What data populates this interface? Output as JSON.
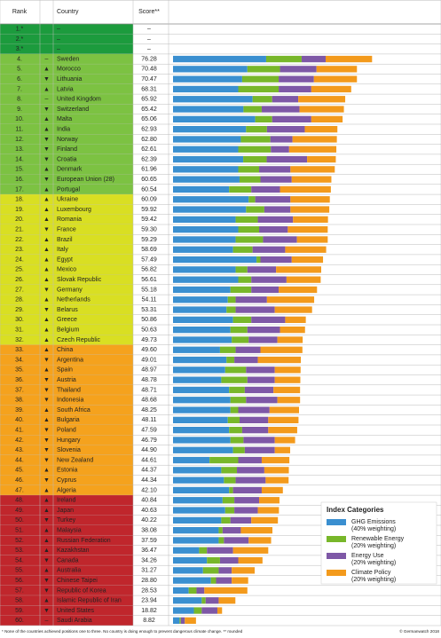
{
  "header": {
    "rank": "Rank",
    "country": "Country",
    "score": "Score**"
  },
  "legend": {
    "title": "Index Categories",
    "items": [
      {
        "name": "GHG Emissions",
        "weight": "(40% weighting)",
        "color": "#3a8fd0"
      },
      {
        "name": "Renewable Energy",
        "weight": "(20% weighting)",
        "color": "#78b72a"
      },
      {
        "name": "Energy Use",
        "weight": "(20% weighting)",
        "color": "#7e58a6"
      },
      {
        "name": "Climate Policy",
        "weight": "(20% weighting)",
        "color": "#f39a1c"
      }
    ]
  },
  "rows": [
    {
      "rank": "1.*",
      "country": "–",
      "score": "–",
      "color": "#1c9b3d"
    },
    {
      "rank": "2.*",
      "country": "–",
      "score": "–",
      "color": "#1c9b3d"
    },
    {
      "rank": "3.*",
      "country": "–",
      "score": "–",
      "color": "#1c9b3d"
    },
    {
      "rank": "4.",
      "trend": "–",
      "country": "Sweden",
      "score": "76.28",
      "color": "#7cc242",
      "bars": [
        35.7,
        13.6,
        9.2,
        17.8
      ]
    },
    {
      "rank": "5.",
      "trend": "▲",
      "country": "Morocco",
      "score": "70.48",
      "color": "#7cc242",
      "bars": [
        28.5,
        12.5,
        14.0,
        15.5
      ]
    },
    {
      "rank": "6.",
      "trend": "▼",
      "country": "Lithuania",
      "score": "70.47",
      "color": "#7cc242",
      "bars": [
        26.5,
        14.0,
        13.5,
        16.5
      ]
    },
    {
      "rank": "7.",
      "trend": "▲",
      "country": "Latvia",
      "score": "68.31",
      "color": "#7cc242",
      "bars": [
        25.0,
        15.5,
        12.5,
        15.3
      ]
    },
    {
      "rank": "8.",
      "trend": "–",
      "country": "United Kingdom",
      "score": "65.92",
      "color": "#7cc242",
      "bars": [
        30.5,
        7.5,
        10.0,
        18.0
      ]
    },
    {
      "rank": "9.",
      "trend": "▼",
      "country": "Switzerland",
      "score": "65.42",
      "color": "#7cc242",
      "bars": [
        27.0,
        7.0,
        14.5,
        17.0
      ]
    },
    {
      "rank": "10.",
      "trend": "▲",
      "country": "Malta",
      "score": "65.06",
      "color": "#7cc242",
      "bars": [
        31.5,
        6.5,
        15.0,
        12.0
      ]
    },
    {
      "rank": "11.",
      "trend": "▲",
      "country": "India",
      "score": "62.93",
      "color": "#7cc242",
      "bars": [
        28.0,
        8.0,
        14.5,
        12.5
      ]
    },
    {
      "rank": "12.",
      "trend": "▼",
      "country": "Norway",
      "score": "62.80",
      "color": "#7cc242",
      "bars": [
        26.0,
        11.3,
        8.5,
        17.0
      ]
    },
    {
      "rank": "13.",
      "trend": "▼",
      "country": "Finland",
      "score": "62.61",
      "color": "#7cc242",
      "bars": [
        25.0,
        12.5,
        7.0,
        18.1
      ]
    },
    {
      "rank": "14.",
      "trend": "▼",
      "country": "Croatia",
      "score": "62.39",
      "color": "#7cc242",
      "bars": [
        26.9,
        9.0,
        15.5,
        11.0
      ]
    },
    {
      "rank": "15.",
      "trend": "▲",
      "country": "Denmark",
      "score": "61.96",
      "color": "#7cc242",
      "bars": [
        25.0,
        8.0,
        12.0,
        17.0
      ]
    },
    {
      "rank": "16.",
      "trend": "▼",
      "country": "European Union (28)",
      "score": "60.65",
      "color": "#7cc242",
      "bars": [
        25.5,
        8.0,
        12.0,
        15.2
      ]
    },
    {
      "rank": "17.",
      "trend": "▲",
      "country": "Portugal",
      "score": "60.54",
      "color": "#7cc242",
      "bars": [
        21.5,
        8.5,
        11.0,
        19.5
      ]
    },
    {
      "rank": "18.",
      "trend": "▲",
      "country": "Ukraine",
      "score": "60.09",
      "color": "#d9df22",
      "bars": [
        29.0,
        2.5,
        13.5,
        15.1
      ]
    },
    {
      "rank": "19.",
      "trend": "▲",
      "country": "Luxembourg",
      "score": "59.92",
      "color": "#d9df22",
      "bars": [
        28.0,
        7.0,
        10.0,
        14.9
      ]
    },
    {
      "rank": "20.",
      "trend": "▲",
      "country": "Romania",
      "score": "59.42",
      "color": "#d9df22",
      "bars": [
        24.0,
        8.5,
        13.5,
        13.4
      ]
    },
    {
      "rank": "21.",
      "trend": "▼",
      "country": "France",
      "score": "59.30",
      "color": "#d9df22",
      "bars": [
        25.0,
        8.0,
        11.0,
        15.3
      ]
    },
    {
      "rank": "22.",
      "trend": "▲",
      "country": "Brazil",
      "score": "59.29",
      "color": "#d9df22",
      "bars": [
        24.0,
        10.5,
        13.0,
        11.8
      ]
    },
    {
      "rank": "23.",
      "trend": "▲",
      "country": "Italy",
      "score": "58.69",
      "color": "#d9df22",
      "bars": [
        23.0,
        7.5,
        12.5,
        15.7
      ]
    },
    {
      "rank": "24.",
      "trend": "▲",
      "country": "Egypt",
      "score": "57.49",
      "color": "#d9df22",
      "bars": [
        32.0,
        1.5,
        12.0,
        12.0
      ]
    },
    {
      "rank": "25.",
      "trend": "▲",
      "country": "Mexico",
      "score": "56.82",
      "color": "#d9df22",
      "bars": [
        24.0,
        4.5,
        11.0,
        17.3
      ]
    },
    {
      "rank": "26.",
      "trend": "▲",
      "country": "Slovak Republic",
      "score": "56.61",
      "color": "#d9df22",
      "bars": [
        25.0,
        5.0,
        13.5,
        13.1
      ]
    },
    {
      "rank": "27.",
      "trend": "▼",
      "country": "Germany",
      "score": "55.18",
      "color": "#d9df22",
      "bars": [
        22.0,
        8.0,
        10.5,
        14.7
      ]
    },
    {
      "rank": "28.",
      "trend": "▲",
      "country": "Netherlands",
      "score": "54.11",
      "color": "#d9df22",
      "bars": [
        21.0,
        3.0,
        12.0,
        18.1
      ]
    },
    {
      "rank": "29.",
      "trend": "▼",
      "country": "Belarus",
      "score": "53.31",
      "color": "#d9df22",
      "bars": [
        20.5,
        3.5,
        15.0,
        14.3
      ]
    },
    {
      "rank": "30.",
      "trend": "▲",
      "country": "Greece",
      "score": "50.86",
      "color": "#d9df22",
      "bars": [
        23.0,
        7.0,
        13.0,
        7.9
      ]
    },
    {
      "rank": "31.",
      "trend": "▲",
      "country": "Belgium",
      "score": "50.63",
      "color": "#d9df22",
      "bars": [
        22.0,
        6.5,
        12.5,
        9.6
      ]
    },
    {
      "rank": "32.",
      "trend": "▲",
      "country": "Czech Republic",
      "score": "49.73",
      "color": "#d9df22",
      "bars": [
        22.5,
        6.5,
        11.0,
        9.7
      ]
    },
    {
      "rank": "33.",
      "trend": "▲",
      "country": "China",
      "score": "49.60",
      "color": "#f5a21d",
      "bars": [
        18.0,
        6.0,
        9.5,
        16.1
      ]
    },
    {
      "rank": "34.",
      "trend": "▼",
      "country": "Argentina",
      "score": "49.01",
      "color": "#f5a21d",
      "bars": [
        20.5,
        3.0,
        9.0,
        16.5
      ]
    },
    {
      "rank": "35.",
      "trend": "▲",
      "country": "Spain",
      "score": "48.97",
      "color": "#f5a21d",
      "bars": [
        20.0,
        8.0,
        11.0,
        9.9
      ]
    },
    {
      "rank": "36.",
      "trend": "▼",
      "country": "Austria",
      "score": "48.78",
      "color": "#f5a21d",
      "bars": [
        18.5,
        10.0,
        10.5,
        9.8
      ]
    },
    {
      "rank": "37.",
      "trend": "▼",
      "country": "Thailand",
      "score": "48.71",
      "color": "#f5a21d",
      "bars": [
        21.5,
        6.0,
        11.0,
        10.2
      ]
    },
    {
      "rank": "38.",
      "trend": "▼",
      "country": "Indonesia",
      "score": "48.68",
      "color": "#f5a21d",
      "bars": [
        22.0,
        6.0,
        12.0,
        8.7
      ]
    },
    {
      "rank": "39.",
      "trend": "▲",
      "country": "South Africa",
      "score": "48.25",
      "color": "#f5a21d",
      "bars": [
        22.0,
        3.0,
        12.0,
        11.3
      ]
    },
    {
      "rank": "40.",
      "trend": "▲",
      "country": "Bulgaria",
      "score": "48.11",
      "color": "#f5a21d",
      "bars": [
        21.0,
        4.5,
        11.0,
        11.6
      ]
    },
    {
      "rank": "41.",
      "trend": "▼",
      "country": "Poland",
      "score": "47.59",
      "color": "#f5a21d",
      "bars": [
        21.5,
        5.0,
        10.0,
        11.1
      ]
    },
    {
      "rank": "42.",
      "trend": "▼",
      "country": "Hungary",
      "score": "46.79",
      "color": "#f5a21d",
      "bars": [
        22.0,
        5.0,
        12.0,
        7.8
      ]
    },
    {
      "rank": "43.",
      "trend": "▼",
      "country": "Slovenia",
      "score": "44.90",
      "color": "#f5a21d",
      "bars": [
        23.0,
        4.5,
        11.5,
        5.9
      ]
    },
    {
      "rank": "44.",
      "trend": "▼",
      "country": "New Zealand",
      "score": "44.61",
      "color": "#f5a21d",
      "bars": [
        14.0,
        11.0,
        9.0,
        10.6
      ]
    },
    {
      "rank": "45.",
      "trend": "▲",
      "country": "Estonia",
      "score": "44.37",
      "color": "#f5a21d",
      "bars": [
        18.5,
        6.0,
        10.5,
        9.4
      ]
    },
    {
      "rank": "46.",
      "trend": "▼",
      "country": "Cyprus",
      "score": "44.34",
      "color": "#f5a21d",
      "bars": [
        19.5,
        4.5,
        11.5,
        8.8
      ]
    },
    {
      "rank": "47.",
      "trend": "▲",
      "country": "Algeria",
      "score": "42.10",
      "color": "#f5a21d",
      "bars": [
        21.5,
        1.5,
        11.0,
        8.1
      ]
    },
    {
      "rank": "48.",
      "trend": "▲",
      "country": "Ireland",
      "score": "40.84",
      "color": "#c0262c",
      "bars": [
        19.0,
        4.5,
        9.5,
        7.8
      ]
    },
    {
      "rank": "49.",
      "trend": "▲",
      "country": "Japan",
      "score": "40.63",
      "color": "#c0262c",
      "bars": [
        20.0,
        3.5,
        9.0,
        8.1
      ]
    },
    {
      "rank": "50.",
      "trend": "▼",
      "country": "Turkey",
      "score": "40.22",
      "color": "#c0262c",
      "bars": [
        18.5,
        3.5,
        8.0,
        10.2
      ]
    },
    {
      "rank": "51.",
      "trend": "▲",
      "country": "Malaysia",
      "score": "38.08",
      "color": "#c0262c",
      "bars": [
        17.5,
        1.5,
        7.0,
        12.1
      ]
    },
    {
      "rank": "52.",
      "trend": "▲",
      "country": "Russian Federation",
      "score": "37.59",
      "color": "#c0262c",
      "bars": [
        17.5,
        2.0,
        9.5,
        8.6
      ]
    },
    {
      "rank": "53.",
      "trend": "▲",
      "country": "Kazakhstan",
      "score": "36.47",
      "color": "#c0262c",
      "bars": [
        10.0,
        3.0,
        10.0,
        13.5
      ]
    },
    {
      "rank": "54.",
      "trend": "▼",
      "country": "Canada",
      "score": "34.26",
      "color": "#c0262c",
      "bars": [
        13.0,
        5.0,
        7.0,
        9.3
      ]
    },
    {
      "rank": "55.",
      "trend": "▲",
      "country": "Australia",
      "score": "31.27",
      "color": "#c0262c",
      "bars": [
        11.5,
        6.0,
        5.0,
        8.8
      ]
    },
    {
      "rank": "56.",
      "trend": "▼",
      "country": "Chinese Taipei",
      "score": "28.80",
      "color": "#c0262c",
      "bars": [
        14.5,
        2.0,
        6.0,
        6.3
      ]
    },
    {
      "rank": "57.",
      "trend": "▼",
      "country": "Republic of Korea",
      "score": "28.53",
      "color": "#c0262c",
      "bars": [
        6.0,
        3.0,
        3.0,
        16.5
      ]
    },
    {
      "rank": "58.",
      "trend": "▲",
      "country": "Islamic Republic of Iran",
      "score": "23.94",
      "color": "#c0262c",
      "bars": [
        11.0,
        1.5,
        5.0,
        6.4
      ]
    },
    {
      "rank": "59.",
      "trend": "▼",
      "country": "United States",
      "score": "18.82",
      "color": "#c0262c",
      "bars": [
        8.0,
        3.0,
        6.0,
        1.8
      ]
    },
    {
      "rank": "60.",
      "trend": "–",
      "country": "Saudi Arabia",
      "score": "8.82",
      "color": "#c0262c",
      "bars": [
        2.5,
        0.5,
        1.5,
        4.3
      ]
    }
  ],
  "footer": {
    "note": "* None of the countries achieved positions one to three. No country is doing enough to prevent dangerous climate change. ** rounded",
    "credit": "© Germanwatch 2018"
  }
}
